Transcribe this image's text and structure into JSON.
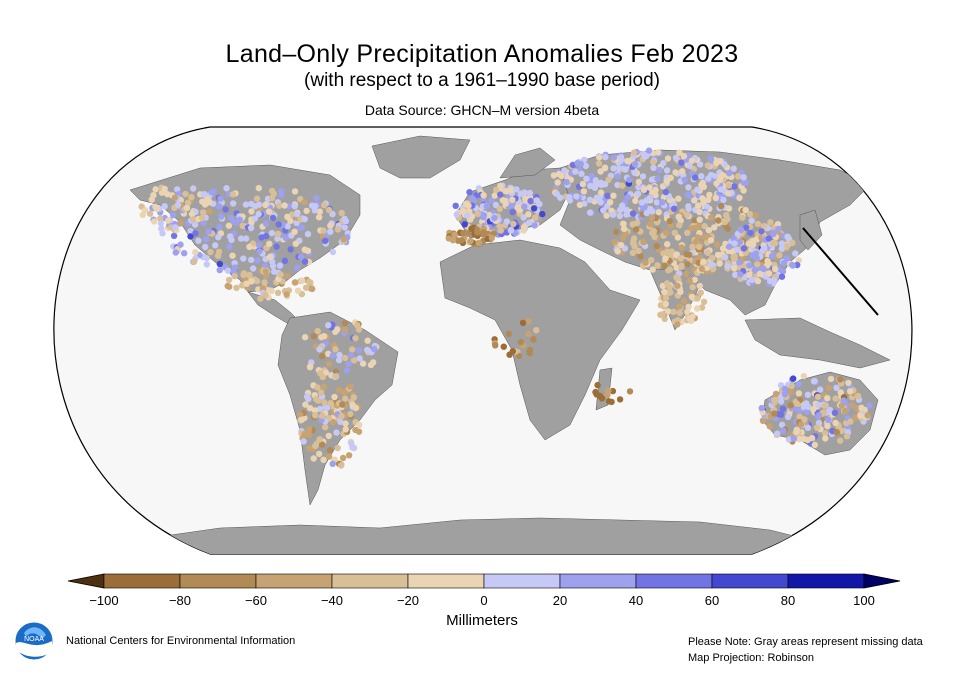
{
  "title": "Land–Only Precipitation Anomalies Feb 2023",
  "subtitle": "(with respect to a 1961–1990 base period)",
  "source": "Data Source: GHCN–M version 4beta",
  "colors": {
    "missing_land": "#a0a0a0",
    "ocean": "#f7f7f7",
    "bins": [
      "#9a6e36",
      "#b28a55",
      "#c7a374",
      "#d9bf97",
      "#ead4b3",
      "#c6c8f5",
      "#9ea1ee",
      "#7274e3",
      "#4447d0",
      "#1317a8"
    ]
  },
  "colorbar": {
    "ticks": [
      "−100",
      "−80",
      "−60",
      "−40",
      "−20",
      "0",
      "20",
      "40",
      "60",
      "80",
      "100"
    ],
    "label": "Millimeters",
    "range": [
      -100,
      100
    ],
    "bin_width": 20
  },
  "footer": {
    "ncei": "National Centers for Environmental Information",
    "note_line1": "Please Note: Gray areas represent missing data",
    "note_line2": "Map Projection: Robinson"
  },
  "logo": {
    "icon": "noaa-logo",
    "text": "NOAA"
  }
}
